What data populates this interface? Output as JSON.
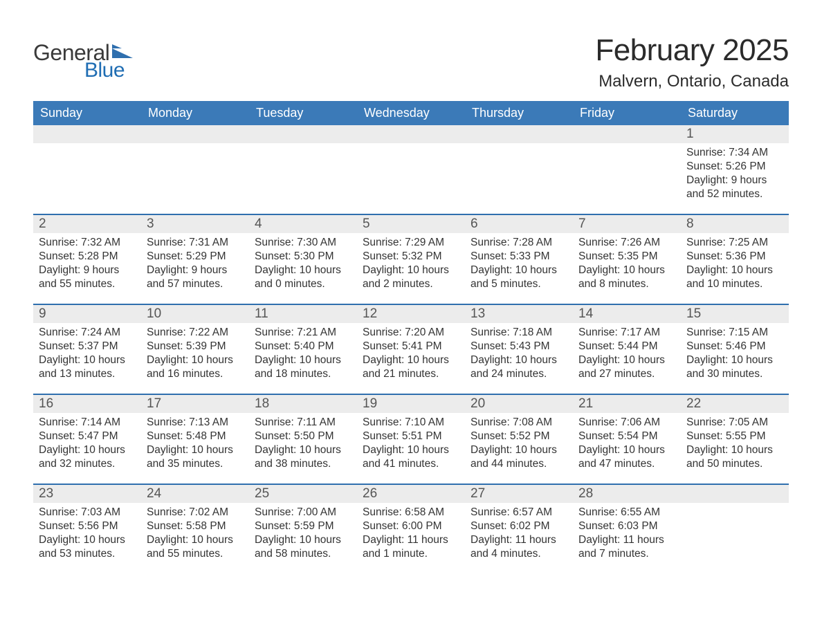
{
  "logo": {
    "text_general": "General",
    "text_blue": "Blue",
    "flag_color": "#2f6fae"
  },
  "title": {
    "month": "February 2025",
    "location": "Malvern, Ontario, Canada"
  },
  "colors": {
    "header_blue": "#3b7ab8",
    "accent_blue": "#1f6db3",
    "row_divider": "#2f6fae",
    "daynum_bg": "#ececec",
    "text_dark": "#333333",
    "page_bg": "#ffffff"
  },
  "calendar": {
    "type": "table",
    "weekdays": [
      "Sunday",
      "Monday",
      "Tuesday",
      "Wednesday",
      "Thursday",
      "Friday",
      "Saturday"
    ],
    "weeks": [
      [
        {
          "day": "",
          "sunrise": "",
          "sunset": "",
          "daylight_l1": "",
          "daylight_l2": ""
        },
        {
          "day": "",
          "sunrise": "",
          "sunset": "",
          "daylight_l1": "",
          "daylight_l2": ""
        },
        {
          "day": "",
          "sunrise": "",
          "sunset": "",
          "daylight_l1": "",
          "daylight_l2": ""
        },
        {
          "day": "",
          "sunrise": "",
          "sunset": "",
          "daylight_l1": "",
          "daylight_l2": ""
        },
        {
          "day": "",
          "sunrise": "",
          "sunset": "",
          "daylight_l1": "",
          "daylight_l2": ""
        },
        {
          "day": "",
          "sunrise": "",
          "sunset": "",
          "daylight_l1": "",
          "daylight_l2": ""
        },
        {
          "day": "1",
          "sunrise": "Sunrise: 7:34 AM",
          "sunset": "Sunset: 5:26 PM",
          "daylight_l1": "Daylight: 9 hours",
          "daylight_l2": "and 52 minutes."
        }
      ],
      [
        {
          "day": "2",
          "sunrise": "Sunrise: 7:32 AM",
          "sunset": "Sunset: 5:28 PM",
          "daylight_l1": "Daylight: 9 hours",
          "daylight_l2": "and 55 minutes."
        },
        {
          "day": "3",
          "sunrise": "Sunrise: 7:31 AM",
          "sunset": "Sunset: 5:29 PM",
          "daylight_l1": "Daylight: 9 hours",
          "daylight_l2": "and 57 minutes."
        },
        {
          "day": "4",
          "sunrise": "Sunrise: 7:30 AM",
          "sunset": "Sunset: 5:30 PM",
          "daylight_l1": "Daylight: 10 hours",
          "daylight_l2": "and 0 minutes."
        },
        {
          "day": "5",
          "sunrise": "Sunrise: 7:29 AM",
          "sunset": "Sunset: 5:32 PM",
          "daylight_l1": "Daylight: 10 hours",
          "daylight_l2": "and 2 minutes."
        },
        {
          "day": "6",
          "sunrise": "Sunrise: 7:28 AM",
          "sunset": "Sunset: 5:33 PM",
          "daylight_l1": "Daylight: 10 hours",
          "daylight_l2": "and 5 minutes."
        },
        {
          "day": "7",
          "sunrise": "Sunrise: 7:26 AM",
          "sunset": "Sunset: 5:35 PM",
          "daylight_l1": "Daylight: 10 hours",
          "daylight_l2": "and 8 minutes."
        },
        {
          "day": "8",
          "sunrise": "Sunrise: 7:25 AM",
          "sunset": "Sunset: 5:36 PM",
          "daylight_l1": "Daylight: 10 hours",
          "daylight_l2": "and 10 minutes."
        }
      ],
      [
        {
          "day": "9",
          "sunrise": "Sunrise: 7:24 AM",
          "sunset": "Sunset: 5:37 PM",
          "daylight_l1": "Daylight: 10 hours",
          "daylight_l2": "and 13 minutes."
        },
        {
          "day": "10",
          "sunrise": "Sunrise: 7:22 AM",
          "sunset": "Sunset: 5:39 PM",
          "daylight_l1": "Daylight: 10 hours",
          "daylight_l2": "and 16 minutes."
        },
        {
          "day": "11",
          "sunrise": "Sunrise: 7:21 AM",
          "sunset": "Sunset: 5:40 PM",
          "daylight_l1": "Daylight: 10 hours",
          "daylight_l2": "and 18 minutes."
        },
        {
          "day": "12",
          "sunrise": "Sunrise: 7:20 AM",
          "sunset": "Sunset: 5:41 PM",
          "daylight_l1": "Daylight: 10 hours",
          "daylight_l2": "and 21 minutes."
        },
        {
          "day": "13",
          "sunrise": "Sunrise: 7:18 AM",
          "sunset": "Sunset: 5:43 PM",
          "daylight_l1": "Daylight: 10 hours",
          "daylight_l2": "and 24 minutes."
        },
        {
          "day": "14",
          "sunrise": "Sunrise: 7:17 AM",
          "sunset": "Sunset: 5:44 PM",
          "daylight_l1": "Daylight: 10 hours",
          "daylight_l2": "and 27 minutes."
        },
        {
          "day": "15",
          "sunrise": "Sunrise: 7:15 AM",
          "sunset": "Sunset: 5:46 PM",
          "daylight_l1": "Daylight: 10 hours",
          "daylight_l2": "and 30 minutes."
        }
      ],
      [
        {
          "day": "16",
          "sunrise": "Sunrise: 7:14 AM",
          "sunset": "Sunset: 5:47 PM",
          "daylight_l1": "Daylight: 10 hours",
          "daylight_l2": "and 32 minutes."
        },
        {
          "day": "17",
          "sunrise": "Sunrise: 7:13 AM",
          "sunset": "Sunset: 5:48 PM",
          "daylight_l1": "Daylight: 10 hours",
          "daylight_l2": "and 35 minutes."
        },
        {
          "day": "18",
          "sunrise": "Sunrise: 7:11 AM",
          "sunset": "Sunset: 5:50 PM",
          "daylight_l1": "Daylight: 10 hours",
          "daylight_l2": "and 38 minutes."
        },
        {
          "day": "19",
          "sunrise": "Sunrise: 7:10 AM",
          "sunset": "Sunset: 5:51 PM",
          "daylight_l1": "Daylight: 10 hours",
          "daylight_l2": "and 41 minutes."
        },
        {
          "day": "20",
          "sunrise": "Sunrise: 7:08 AM",
          "sunset": "Sunset: 5:52 PM",
          "daylight_l1": "Daylight: 10 hours",
          "daylight_l2": "and 44 minutes."
        },
        {
          "day": "21",
          "sunrise": "Sunrise: 7:06 AM",
          "sunset": "Sunset: 5:54 PM",
          "daylight_l1": "Daylight: 10 hours",
          "daylight_l2": "and 47 minutes."
        },
        {
          "day": "22",
          "sunrise": "Sunrise: 7:05 AM",
          "sunset": "Sunset: 5:55 PM",
          "daylight_l1": "Daylight: 10 hours",
          "daylight_l2": "and 50 minutes."
        }
      ],
      [
        {
          "day": "23",
          "sunrise": "Sunrise: 7:03 AM",
          "sunset": "Sunset: 5:56 PM",
          "daylight_l1": "Daylight: 10 hours",
          "daylight_l2": "and 53 minutes."
        },
        {
          "day": "24",
          "sunrise": "Sunrise: 7:02 AM",
          "sunset": "Sunset: 5:58 PM",
          "daylight_l1": "Daylight: 10 hours",
          "daylight_l2": "and 55 minutes."
        },
        {
          "day": "25",
          "sunrise": "Sunrise: 7:00 AM",
          "sunset": "Sunset: 5:59 PM",
          "daylight_l1": "Daylight: 10 hours",
          "daylight_l2": "and 58 minutes."
        },
        {
          "day": "26",
          "sunrise": "Sunrise: 6:58 AM",
          "sunset": "Sunset: 6:00 PM",
          "daylight_l1": "Daylight: 11 hours",
          "daylight_l2": "and 1 minute."
        },
        {
          "day": "27",
          "sunrise": "Sunrise: 6:57 AM",
          "sunset": "Sunset: 6:02 PM",
          "daylight_l1": "Daylight: 11 hours",
          "daylight_l2": "and 4 minutes."
        },
        {
          "day": "28",
          "sunrise": "Sunrise: 6:55 AM",
          "sunset": "Sunset: 6:03 PM",
          "daylight_l1": "Daylight: 11 hours",
          "daylight_l2": "and 7 minutes."
        },
        {
          "day": "",
          "sunrise": "",
          "sunset": "",
          "daylight_l1": "",
          "daylight_l2": ""
        }
      ]
    ]
  }
}
